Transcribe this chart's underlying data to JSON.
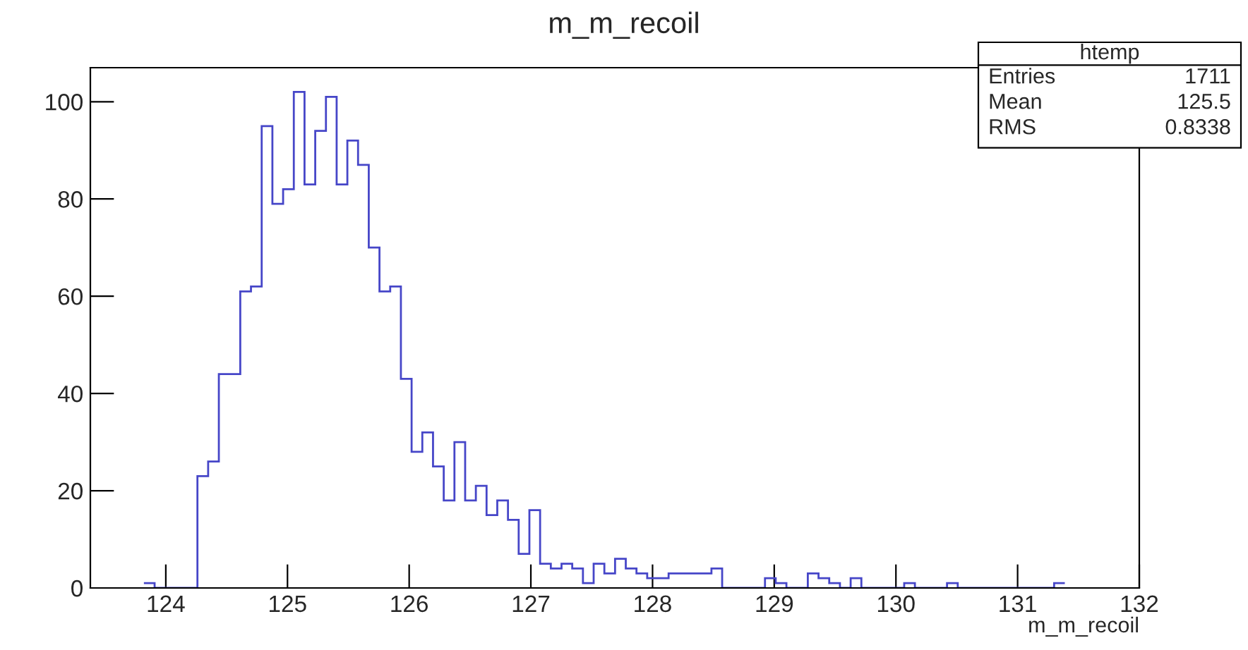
{
  "chart_data": {
    "type": "histogram",
    "title": "m_m_recoil",
    "xlabel": "m_m_recoil",
    "bins": [
      123.82,
      123.908,
      123.996,
      124.084,
      124.172,
      124.26,
      124.348,
      124.436,
      124.524,
      124.612,
      124.7,
      124.788,
      124.876,
      124.964,
      125.052,
      125.14,
      125.228,
      125.316,
      125.404,
      125.492,
      125.58,
      125.668,
      125.756,
      125.844,
      125.932,
      126.02,
      126.108,
      126.196,
      126.284,
      126.372,
      126.46,
      126.548,
      126.636,
      126.724,
      126.812,
      126.9,
      126.988,
      127.076,
      127.164,
      127.252,
      127.34,
      127.428,
      127.516,
      127.604,
      127.692,
      127.78,
      127.868,
      127.956,
      128.044,
      128.132,
      128.22,
      128.308,
      128.396,
      128.484,
      128.572,
      128.66,
      128.748,
      128.836,
      128.924,
      129.012,
      129.1,
      129.188,
      129.276,
      129.364,
      129.452,
      129.54,
      129.628,
      129.716,
      129.804,
      129.892,
      129.98,
      130.068,
      130.156,
      130.244,
      130.332,
      130.42,
      130.508,
      130.596,
      130.684,
      130.772,
      130.86,
      130.948,
      131.036,
      131.124,
      131.212,
      131.3,
      131.388
    ],
    "values": [
      1,
      0,
      0,
      0,
      0,
      23,
      26,
      44,
      44,
      61,
      62,
      95,
      79,
      82,
      102,
      83,
      94,
      101,
      83,
      92,
      87,
      70,
      61,
      62,
      43,
      28,
      32,
      25,
      18,
      30,
      18,
      21,
      15,
      18,
      14,
      7,
      16,
      5,
      4,
      5,
      4,
      1,
      5,
      3,
      6,
      4,
      3,
      2,
      2,
      3,
      3,
      3,
      3,
      4,
      0,
      0,
      0,
      0,
      2,
      1,
      0,
      0,
      3,
      2,
      1,
      0,
      2,
      0,
      0,
      0,
      0,
      1,
      0,
      0,
      0,
      1,
      0,
      0,
      0,
      0,
      0,
      0,
      0,
      0,
      0,
      1
    ],
    "color": "#4646c8",
    "xlim": [
      123.38,
      132
    ],
    "xticks": [
      124,
      125,
      126,
      127,
      128,
      129,
      130,
      131,
      132
    ],
    "ylim": [
      0,
      107
    ],
    "yticks": [
      0,
      20,
      40,
      60,
      80,
      100
    ],
    "grid": false,
    "annotations": [
      "htemp",
      "Entries",
      "1711",
      "Mean",
      "125.5",
      "RMS",
      "0.8338"
    ]
  }
}
